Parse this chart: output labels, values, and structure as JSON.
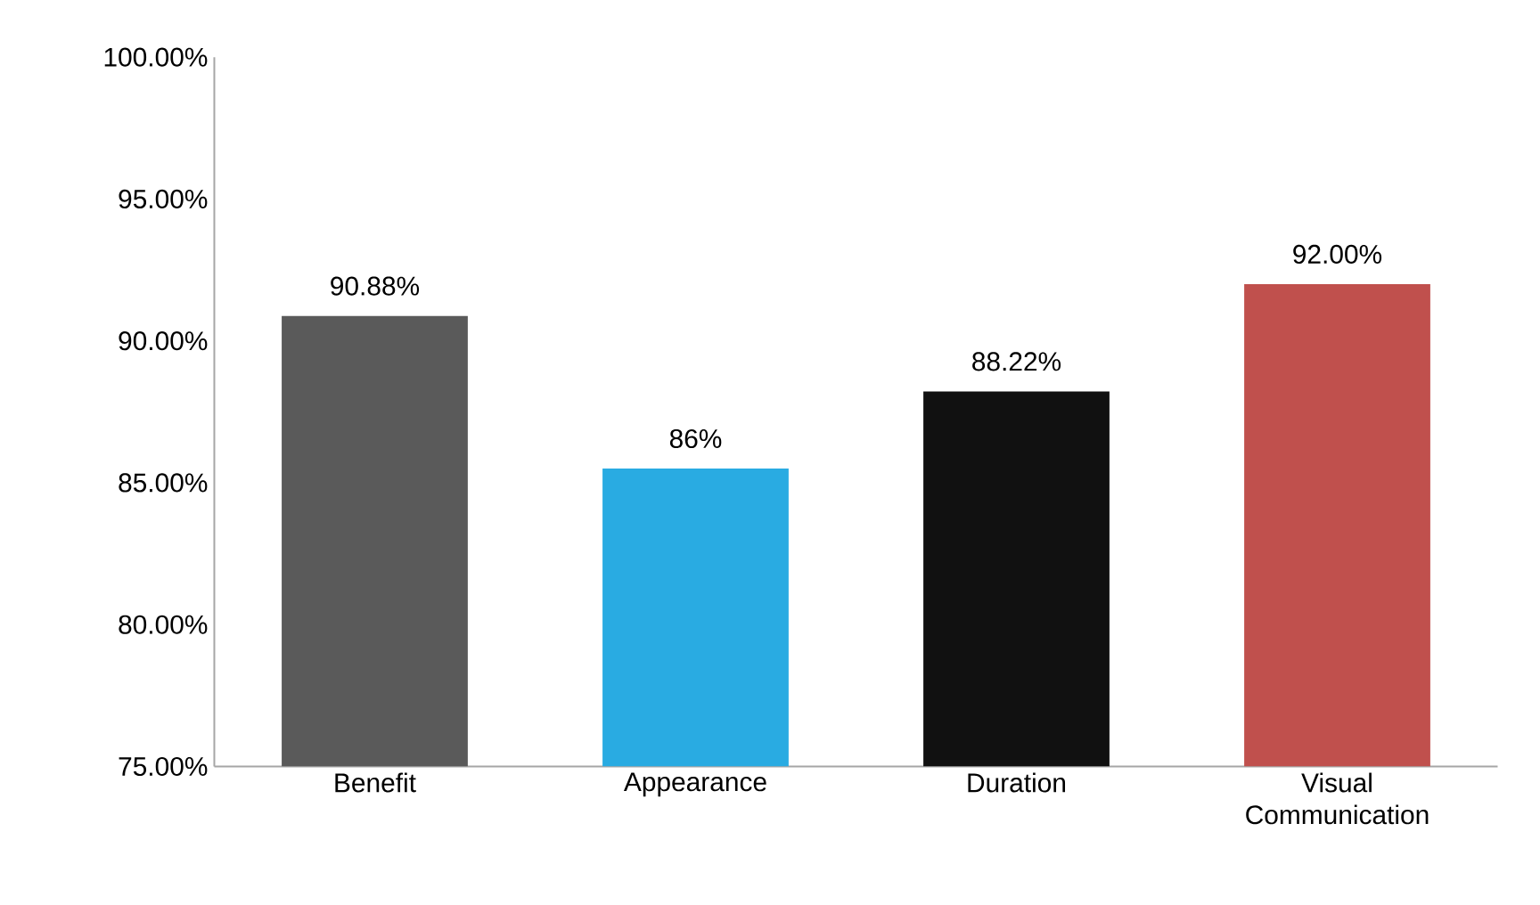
{
  "chart_data": {
    "type": "bar",
    "categories": [
      "Benefit",
      "Appearance",
      "Duration",
      "Visual Communication"
    ],
    "values": [
      90.88,
      85.5,
      88.22,
      92.0
    ],
    "value_labels": [
      "90.88%",
      "86%",
      "88.22%",
      "92.00%"
    ],
    "colors": [
      "#5a5a5a",
      "#29abe2",
      "#111111",
      "#c0504d"
    ],
    "ylim": [
      75,
      100
    ],
    "yticks": [
      {
        "value": 75,
        "label": "75.00%"
      },
      {
        "value": 80,
        "label": "80.00%"
      },
      {
        "value": 85,
        "label": "85.00%"
      },
      {
        "value": 90,
        "label": "90.00%"
      },
      {
        "value": 95,
        "label": "95.00%"
      },
      {
        "value": 100,
        "label": "100.00%"
      }
    ],
    "grid": false
  }
}
